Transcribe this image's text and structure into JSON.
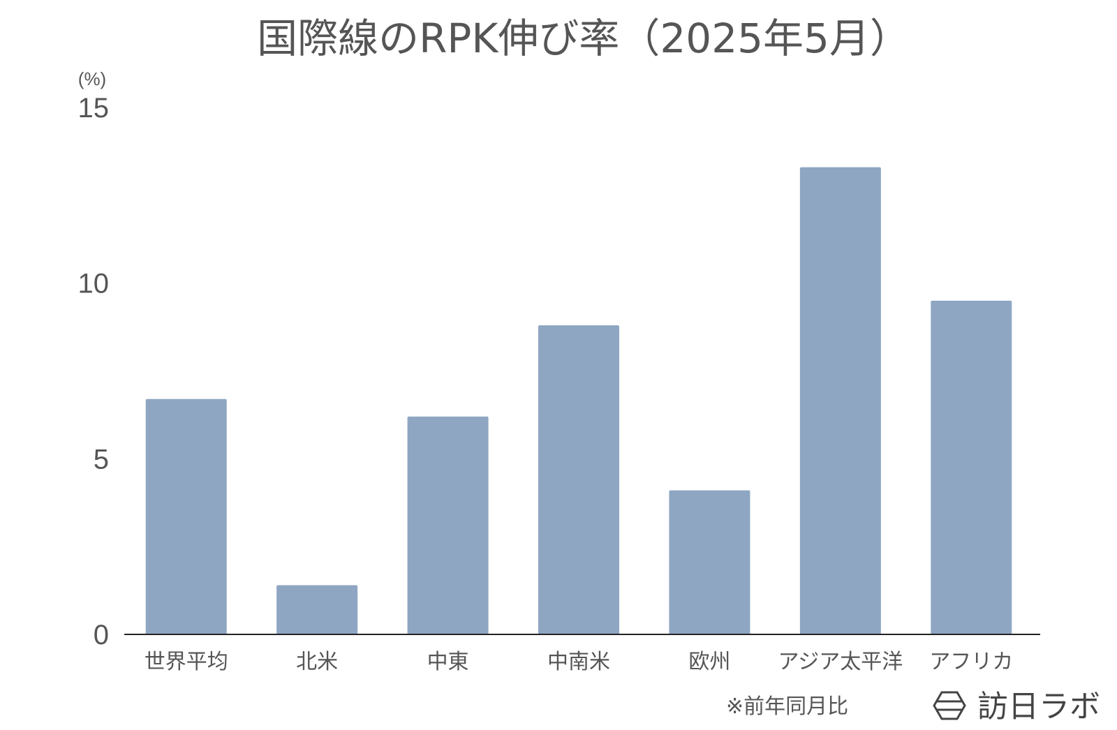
{
  "chart_data": {
    "type": "bar",
    "title": "国際線のRPK伸び率（2025年5月）",
    "ylabel": "(%)",
    "xlabel": "",
    "categories": [
      "世界平均",
      "北米",
      "中東",
      "中南米",
      "欧州",
      "アジア太平洋",
      "アフリカ"
    ],
    "values": [
      6.7,
      1.4,
      6.2,
      8.8,
      4.1,
      13.3,
      9.5
    ],
    "ylim": [
      0,
      15
    ],
    "yticks": [
      0,
      5,
      10,
      15
    ],
    "grid": false,
    "legend": "none"
  },
  "colors": {
    "bar": "#8ea6c2",
    "axis": "#222222",
    "text": "#555555"
  },
  "footer": {
    "note": "※前年同月比",
    "brand": "訪日ラボ",
    "brand_icon": "hexagon-logo-icon"
  }
}
